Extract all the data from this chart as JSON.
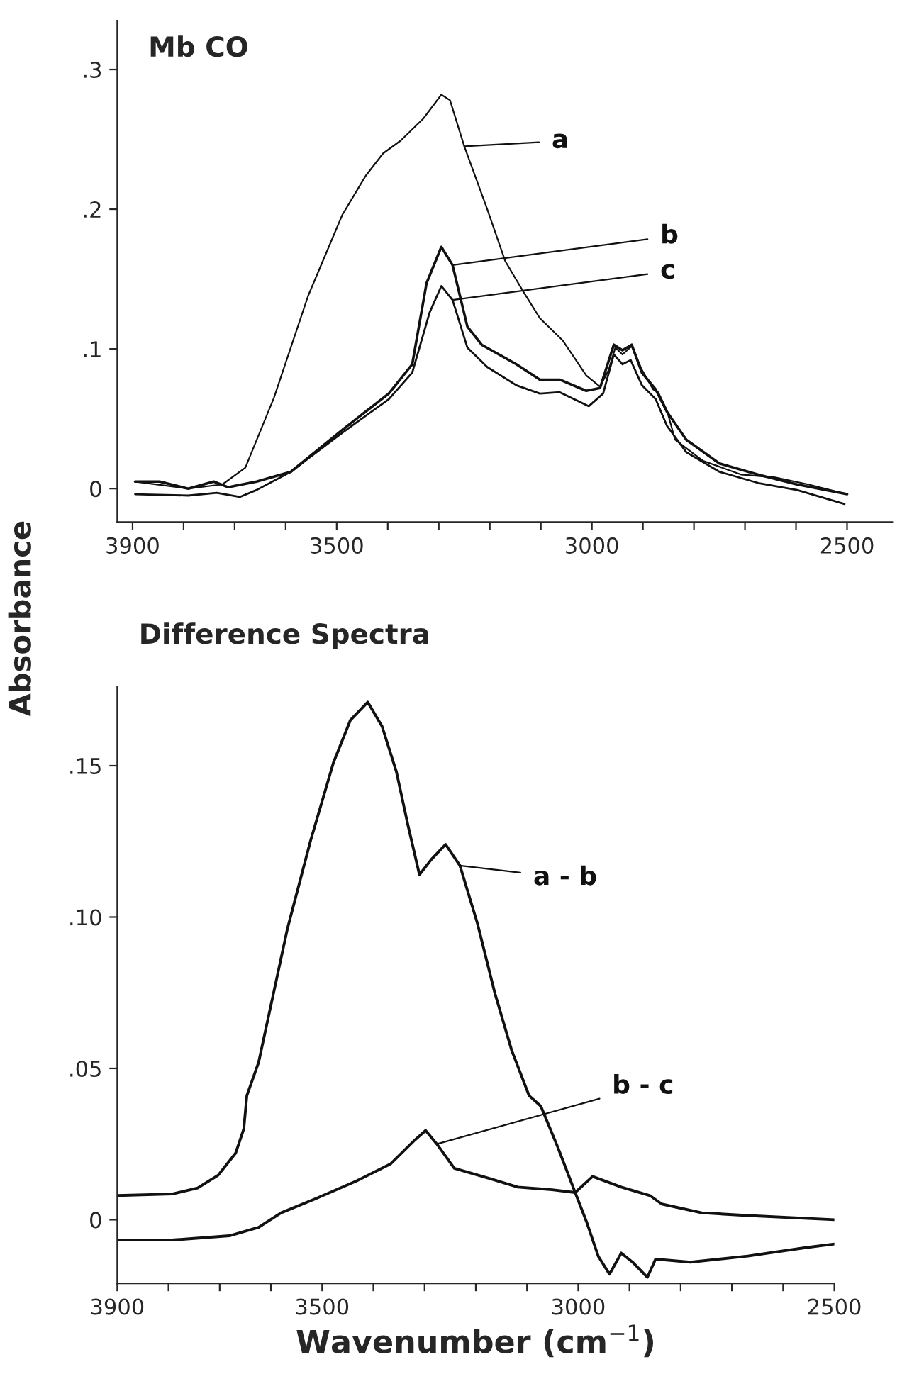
{
  "chart_data": [
    {
      "type": "line",
      "title": "Mb CO",
      "ylabel": "Absorbance",
      "xlim": [
        3930,
        2410
      ],
      "ylim": [
        -0.024,
        0.335
      ],
      "xticks": [
        3900,
        {
          "value": 3800,
          "label": null
        },
        {
          "value": 3700,
          "label": null
        },
        {
          "value": 3600,
          "label": null
        },
        3500,
        {
          "value": 3400,
          "label": null
        },
        {
          "value": 3300,
          "label": null
        },
        {
          "value": 3200,
          "label": null
        },
        {
          "value": 3100,
          "label": null
        },
        3000,
        {
          "value": 2900,
          "label": null
        },
        {
          "value": 2800,
          "label": null
        },
        {
          "value": 2700,
          "label": null
        },
        {
          "value": 2600,
          "label": null
        },
        2500
      ],
      "yticks": [
        0,
        {
          "value": 0.1,
          "label": ".1"
        },
        {
          "value": 0.2,
          "label": ".2"
        },
        {
          "value": 0.3,
          "label": ".3"
        }
      ],
      "grid": false,
      "marker": "none",
      "line_style": "solid",
      "series": [
        {
          "name": "a",
          "color": "#111111",
          "x": [
            3895,
            3791,
            3724,
            3679,
            3623,
            3556,
            3489,
            3443,
            3409,
            3375,
            3330,
            3295,
            3278,
            3250,
            3205,
            3170,
            3136,
            3102,
            3057,
            3011,
            2984,
            2967,
            2954,
            2940,
            2922,
            2902,
            2880,
            2870,
            2853,
            2837,
            2783,
            2707,
            2641,
            2576,
            2500
          ],
          "values": [
            0.005,
            0.0,
            0.003,
            0.015,
            0.065,
            0.138,
            0.196,
            0.224,
            0.24,
            0.249,
            0.265,
            0.282,
            0.278,
            0.245,
            0.2,
            0.163,
            0.142,
            0.122,
            0.106,
            0.081,
            0.073,
            0.085,
            0.101,
            0.096,
            0.102,
            0.085,
            0.071,
            0.069,
            0.056,
            0.035,
            0.02,
            0.01,
            0.008,
            0.003,
            -0.004
          ]
        },
        {
          "name": "b",
          "color": "#111111",
          "x": [
            3895,
            3847,
            3791,
            3741,
            3713,
            3657,
            3590,
            3489,
            3398,
            3352,
            3324,
            3295,
            3273,
            3244,
            3216,
            3148,
            3102,
            3063,
            3011,
            2984,
            2957,
            2940,
            2922,
            2902,
            2875,
            2853,
            2815,
            2750,
            2674,
            2598,
            2500
          ],
          "values": [
            0.005,
            0.005,
            0.0,
            0.005,
            0.001,
            0.005,
            0.012,
            0.042,
            0.068,
            0.089,
            0.147,
            0.173,
            0.16,
            0.116,
            0.103,
            0.089,
            0.078,
            0.078,
            0.07,
            0.072,
            0.103,
            0.099,
            0.103,
            0.083,
            0.071,
            0.055,
            0.035,
            0.018,
            0.01,
            0.003,
            -0.004
          ]
        },
        {
          "name": "c",
          "color": "#111111",
          "x": [
            3895,
            3791,
            3735,
            3690,
            3657,
            3590,
            3489,
            3398,
            3352,
            3318,
            3295,
            3273,
            3244,
            3205,
            3148,
            3102,
            3063,
            3006,
            2978,
            2957,
            2940,
            2924,
            2902,
            2875,
            2853,
            2815,
            2750,
            2674,
            2598,
            2505
          ],
          "values": [
            -0.004,
            -0.005,
            -0.003,
            -0.006,
            -0.001,
            0.012,
            0.04,
            0.064,
            0.083,
            0.126,
            0.145,
            0.135,
            0.101,
            0.087,
            0.074,
            0.068,
            0.069,
            0.059,
            0.068,
            0.096,
            0.089,
            0.092,
            0.074,
            0.064,
            0.045,
            0.026,
            0.012,
            0.004,
            -0.001,
            -0.011
          ]
        }
      ]
    },
    {
      "type": "line",
      "title": "Difference Spectra",
      "xlabel": "Wavenumber (cm$^{−1}$)",
      "xlim": [
        3900,
        2500
      ],
      "ylim": [
        -0.021,
        0.176
      ],
      "xticks": [
        3900,
        {
          "value": 3800,
          "label": null
        },
        {
          "value": 3700,
          "label": null
        },
        {
          "value": 3600,
          "label": null
        },
        3500,
        {
          "value": 3400,
          "label": null
        },
        {
          "value": 3300,
          "label": null
        },
        {
          "value": 3200,
          "label": null
        },
        {
          "value": 3100,
          "label": null
        },
        3000,
        {
          "value": 2900,
          "label": null
        },
        {
          "value": 2800,
          "label": null
        },
        {
          "value": 2700,
          "label": null
        },
        {
          "value": 2600,
          "label": null
        },
        2500
      ],
      "yticks": [
        0,
        {
          "value": 0.05,
          "label": ".05"
        },
        {
          "value": 0.1,
          "label": ".10"
        },
        {
          "value": 0.15,
          "label": ".15"
        }
      ],
      "grid": false,
      "marker": "none",
      "line_style": "solid",
      "series": [
        {
          "name": "a - b",
          "color": "#111111",
          "x": [
            3900,
            3793,
            3743,
            3703,
            3669,
            3653,
            3647,
            3624,
            3568,
            3523,
            3478,
            3445,
            3411,
            3383,
            3355,
            3332,
            3310,
            3287,
            3259,
            3231,
            3197,
            3163,
            3130,
            3096,
            3073,
            3040,
            3006,
            2984,
            2961,
            2939,
            2916,
            2894,
            2865,
            2849,
            2781,
            2669,
            2556,
            2500
          ],
          "values": [
            0.008,
            0.0085,
            0.0105,
            0.0147,
            0.022,
            0.03,
            0.041,
            0.052,
            0.096,
            0.125,
            0.151,
            0.165,
            0.171,
            0.163,
            0.148,
            0.13,
            0.114,
            0.119,
            0.124,
            0.117,
            0.098,
            0.075,
            0.056,
            0.041,
            0.0375,
            0.024,
            0.009,
            -0.0006,
            -0.012,
            -0.018,
            -0.011,
            -0.014,
            -0.019,
            -0.013,
            -0.014,
            -0.012,
            -0.0092,
            -0.008
          ]
        },
        {
          "name": "b - c",
          "color": "#111111",
          "x": [
            3900,
            3793,
            3681,
            3624,
            3580,
            3512,
            3433,
            3366,
            3321,
            3298,
            3276,
            3242,
            3175,
            3118,
            3051,
            3006,
            2972,
            2916,
            2860,
            2837,
            2759,
            2669,
            2500
          ],
          "values": [
            -0.0067,
            -0.0067,
            -0.0053,
            -0.0025,
            0.0023,
            0.007,
            0.0128,
            0.0185,
            0.026,
            0.0295,
            0.025,
            0.017,
            0.0137,
            0.0108,
            0.0099,
            0.009,
            0.0143,
            0.0108,
            0.008,
            0.0052,
            0.0023,
            0.0014,
            0.0
          ]
        }
      ]
    }
  ]
}
